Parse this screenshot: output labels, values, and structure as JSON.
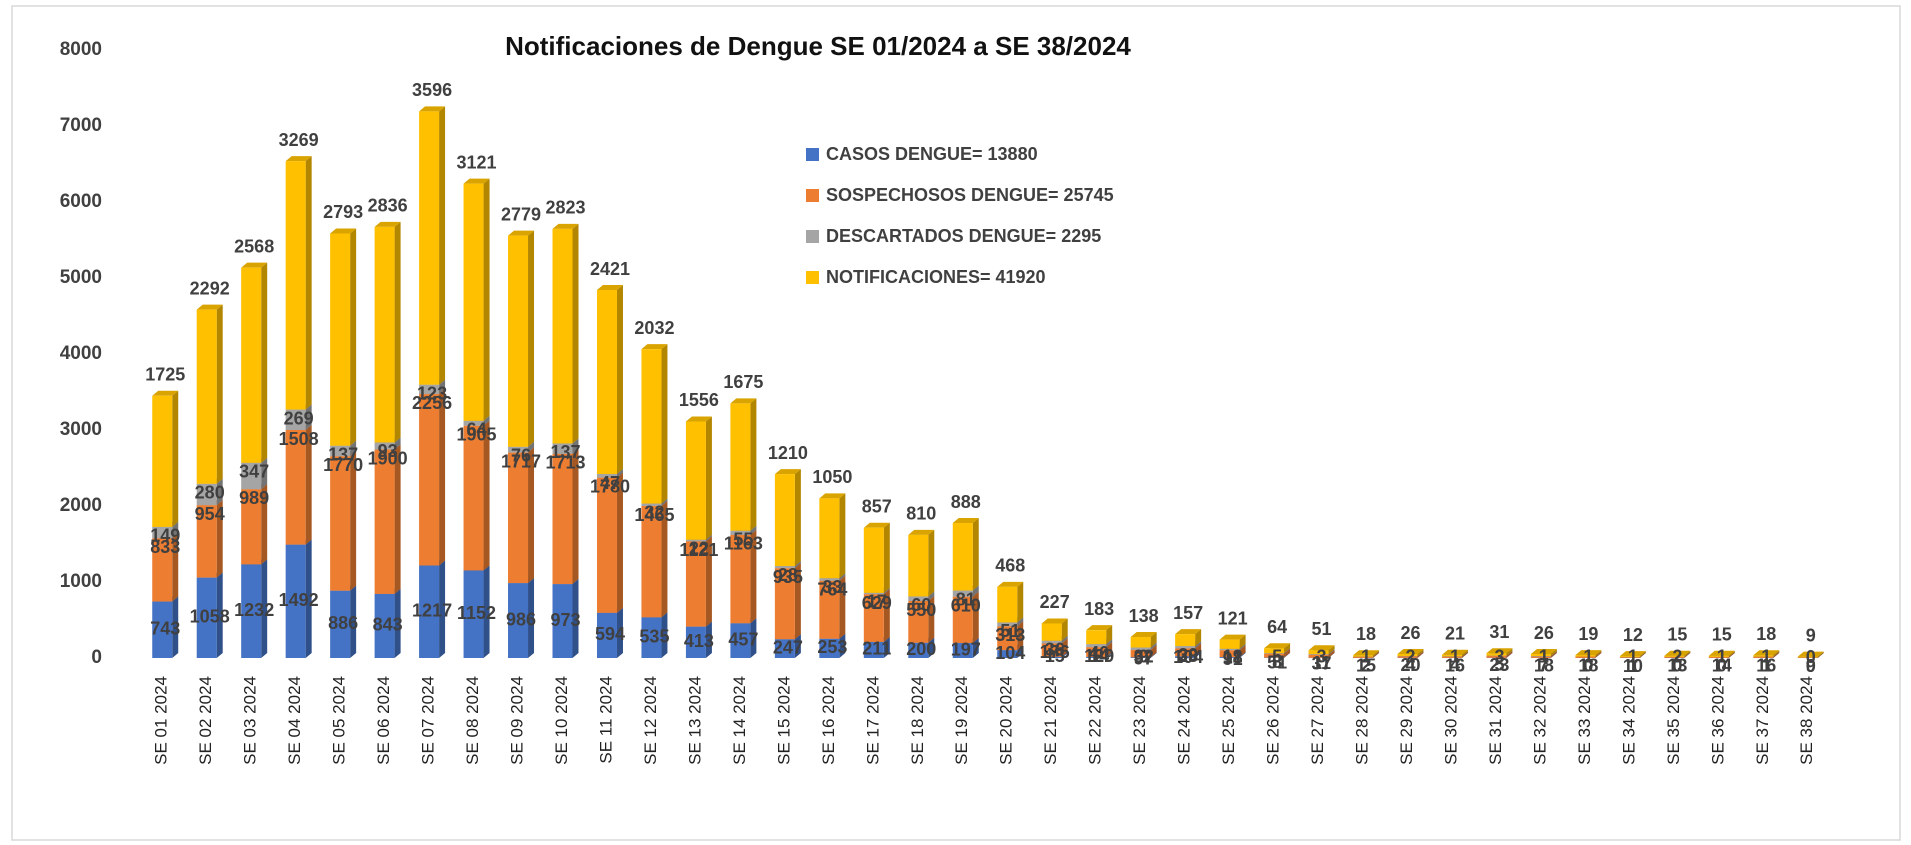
{
  "chart_data": {
    "type": "bar",
    "stacked": true,
    "title": "Notificaciones de Dengue SE 01/2024 a SE 38/2024",
    "categories": [
      "SE 01 2024",
      "SE 02 2024",
      "SE 03 2024",
      "SE 04 2024",
      "SE 05 2024",
      "SE 06 2024",
      "SE 07 2024",
      "SE 08 2024",
      "SE 09 2024",
      "SE 10 2024",
      "SE 11 2024",
      "SE 12 2024",
      "SE 13 2024",
      "SE 14 2024",
      "SE 15 2024",
      "SE 16 2024",
      "SE 17 2024",
      "SE 18 2024",
      "SE 19 2024",
      "SE 20 2024",
      "SE 21 2024",
      "SE 22 2024",
      "SE 23 2024",
      "SE 24 2024",
      "SE 25 2024",
      "SE 26 2024",
      "SE 27 2024",
      "SE 28 2024",
      "SE 29 2024",
      "SE 30 2024",
      "SE 31 2024",
      "SE 32 2024",
      "SE 33 2024",
      "SE 34 2024",
      "SE 35 2024",
      "SE 36 2024",
      "SE 37 2024",
      "SE 38 2024"
    ],
    "series": [
      {
        "name": "CASOS DENGUE= 13880",
        "color": "#4472c4",
        "values": [
          743,
          1058,
          1232,
          1492,
          886,
          843,
          1217,
          1152,
          986,
          973,
          594,
          535,
          413,
          457,
          247,
          253,
          211,
          200,
          197,
          104,
          15,
          14,
          9,
          23,
          12,
          5,
          3,
          1,
          2,
          1,
          3,
          1,
          1,
          1,
          2,
          1,
          1,
          0
        ]
      },
      {
        "name": "SOSPECHOSOS DENGUE= 25745",
        "color": "#ed7d31",
        "values": [
          833,
          954,
          989,
          1508,
          1770,
          1900,
          2256,
          1905,
          1717,
          1713,
          1780,
          1465,
          1121,
          1163,
          935,
          764,
          629,
          550,
          610,
          313,
          176,
          129,
          97,
          104,
          91,
          51,
          37,
          15,
          20,
          16,
          23,
          18,
          18,
          10,
          13,
          14,
          16,
          9
        ]
      },
      {
        "name": "DESCARTADOS DENGUE= 2295",
        "color": "#a5a5a5",
        "values": [
          149,
          280,
          347,
          269,
          137,
          93,
          123,
          64,
          76,
          137,
          47,
          32,
          22,
          55,
          28,
          33,
          17,
          60,
          81,
          51,
          36,
          40,
          32,
          30,
          18,
          8,
          11,
          2,
          4,
          4,
          5,
          7,
          0,
          1,
          0,
          0,
          1,
          0
        ]
      },
      {
        "name": "NOTIFICACIONES= 41920",
        "color": "#ffc000",
        "values": [
          1725,
          2292,
          2568,
          3269,
          2793,
          2836,
          3596,
          3121,
          2779,
          2823,
          2421,
          2032,
          1556,
          1675,
          1210,
          1050,
          857,
          810,
          888,
          468,
          227,
          183,
          138,
          157,
          121,
          64,
          51,
          18,
          26,
          21,
          31,
          26,
          19,
          12,
          15,
          15,
          18,
          9
        ]
      }
    ],
    "ylim": [
      0,
      8000
    ],
    "yticks": [
      0,
      1000,
      2000,
      3000,
      4000,
      5000,
      6000,
      7000,
      8000
    ],
    "grid": false
  }
}
